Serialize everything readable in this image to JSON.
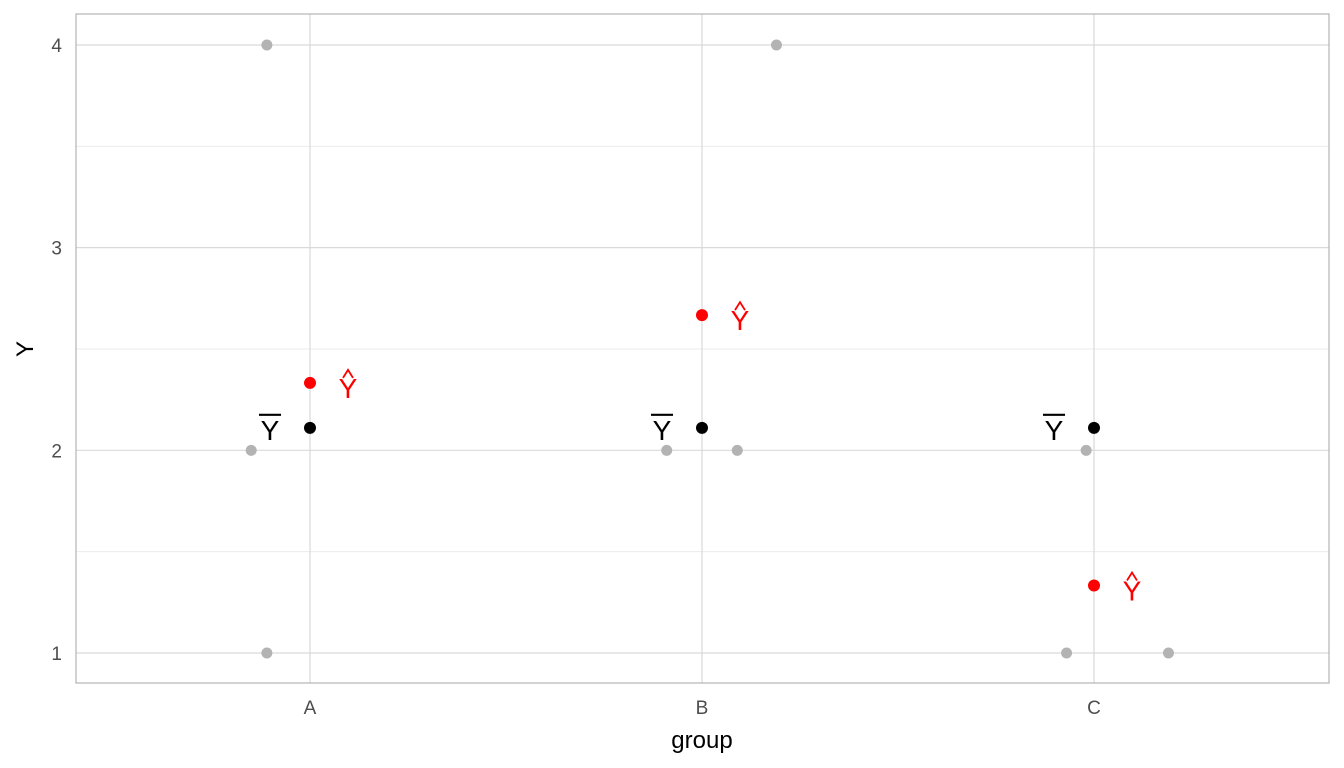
{
  "chart_data": {
    "type": "scatter",
    "title": "",
    "xlabel": "group",
    "ylabel": "Y",
    "categories": [
      "A",
      "B",
      "C"
    ],
    "ylim": [
      0.85,
      4.15
    ],
    "y_ticks": [
      1,
      2,
      3,
      4
    ],
    "grid": true,
    "observations": [
      {
        "group": "A",
        "jitter": -0.11,
        "y": 4
      },
      {
        "group": "A",
        "jitter": -0.11,
        "y": 1
      },
      {
        "group": "A",
        "jitter": -0.15,
        "y": 2
      },
      {
        "group": "B",
        "jitter": 0.19,
        "y": 4
      },
      {
        "group": "B",
        "jitter": -0.09,
        "y": 2
      },
      {
        "group": "B",
        "jitter": 0.09,
        "y": 2
      },
      {
        "group": "C",
        "jitter": -0.02,
        "y": 2
      },
      {
        "group": "C",
        "jitter": -0.07,
        "y": 1
      },
      {
        "group": "C",
        "jitter": 0.19,
        "y": 1
      }
    ],
    "grand_mean": {
      "label": "Y",
      "values": [
        2.111,
        2.111,
        2.111
      ]
    },
    "group_means": {
      "label": "Y",
      "values": [
        2.333,
        2.667,
        1.333
      ]
    },
    "colors": {
      "observation": "#b3b3b3",
      "grand_mean": "#000000",
      "group_mean": "#ff0000",
      "grid": "#d9d9d9",
      "grid_minor": "#ebebeb",
      "panel_border": "#b3b3b3"
    }
  }
}
